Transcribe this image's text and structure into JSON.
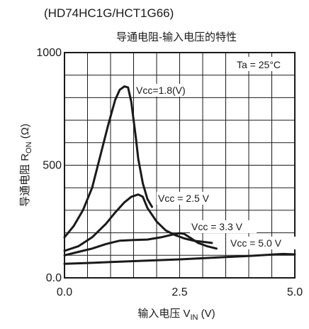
{
  "part_number": "(HD74HC1G/HCT1G66)",
  "chart_data": {
    "type": "line",
    "title": "导通电阻-输入电压的特性",
    "xlabel": {
      "main": "输入电压 V",
      "sub": "IN",
      "unit": " (V)"
    },
    "ylabel": {
      "main": "导通电阻 R",
      "sub": "ON",
      "unit": " (Ω)"
    },
    "xlim": [
      0,
      5
    ],
    "ylim": [
      0,
      1000
    ],
    "x_tick_labels": [
      "0.0",
      "2.5",
      "5.0"
    ],
    "x_tick_values": [
      0,
      2.5,
      5
    ],
    "y_tick_labels": [
      "0.0",
      "500",
      "1000"
    ],
    "y_tick_values": [
      0,
      500,
      1000
    ],
    "grid": true,
    "grid_x_step": 0.5,
    "grid_y_step": 100,
    "annotation": "Ta = 25°C",
    "series": [
      {
        "name": "Vcc=1.8(V)",
        "x": [
          0,
          0.2,
          0.4,
          0.6,
          0.8,
          0.95,
          1.1,
          1.2,
          1.3,
          1.38,
          1.45,
          1.5,
          1.55,
          1.6,
          1.7,
          1.8,
          1.9
        ],
        "y": [
          180,
          230,
          300,
          400,
          560,
          680,
          790,
          835,
          850,
          845,
          780,
          700,
          620,
          530,
          420,
          350,
          315
        ]
      },
      {
        "name": "Vcc = 2.5 V",
        "x": [
          0,
          0.3,
          0.6,
          0.9,
          1.1,
          1.3,
          1.45,
          1.6,
          1.7,
          1.8,
          2.0,
          2.2,
          2.4,
          2.6,
          2.8,
          3.0,
          3.2
        ],
        "y": [
          120,
          140,
          180,
          240,
          290,
          335,
          360,
          370,
          360,
          310,
          250,
          210,
          190,
          175,
          165,
          160,
          155
        ]
      },
      {
        "name": "Vcc = 3.3 V",
        "x": [
          0,
          0.3,
          0.6,
          0.9,
          1.2,
          1.5,
          1.8,
          2.1,
          2.3,
          2.5,
          2.6,
          2.75,
          2.9,
          3.1,
          3.3
        ],
        "y": [
          100,
          115,
          130,
          150,
          165,
          168,
          170,
          180,
          190,
          198,
          195,
          175,
          155,
          140,
          130
        ]
      },
      {
        "name": "Vcc = 5.0 V",
        "x": [
          0,
          0.5,
          1.0,
          1.5,
          2.0,
          2.5,
          3.0,
          3.5,
          4.0,
          4.5,
          4.75,
          5.0
        ],
        "y": [
          62,
          66,
          70,
          74,
          78,
          82,
          87,
          92,
          97,
          103,
          106,
          104
        ]
      }
    ],
    "series_labels": [
      "Vcc=1.8(V)",
      "Vcc = 2.5 V",
      "Vcc = 3.3 V",
      "Vcc = 5.0 V"
    ]
  }
}
